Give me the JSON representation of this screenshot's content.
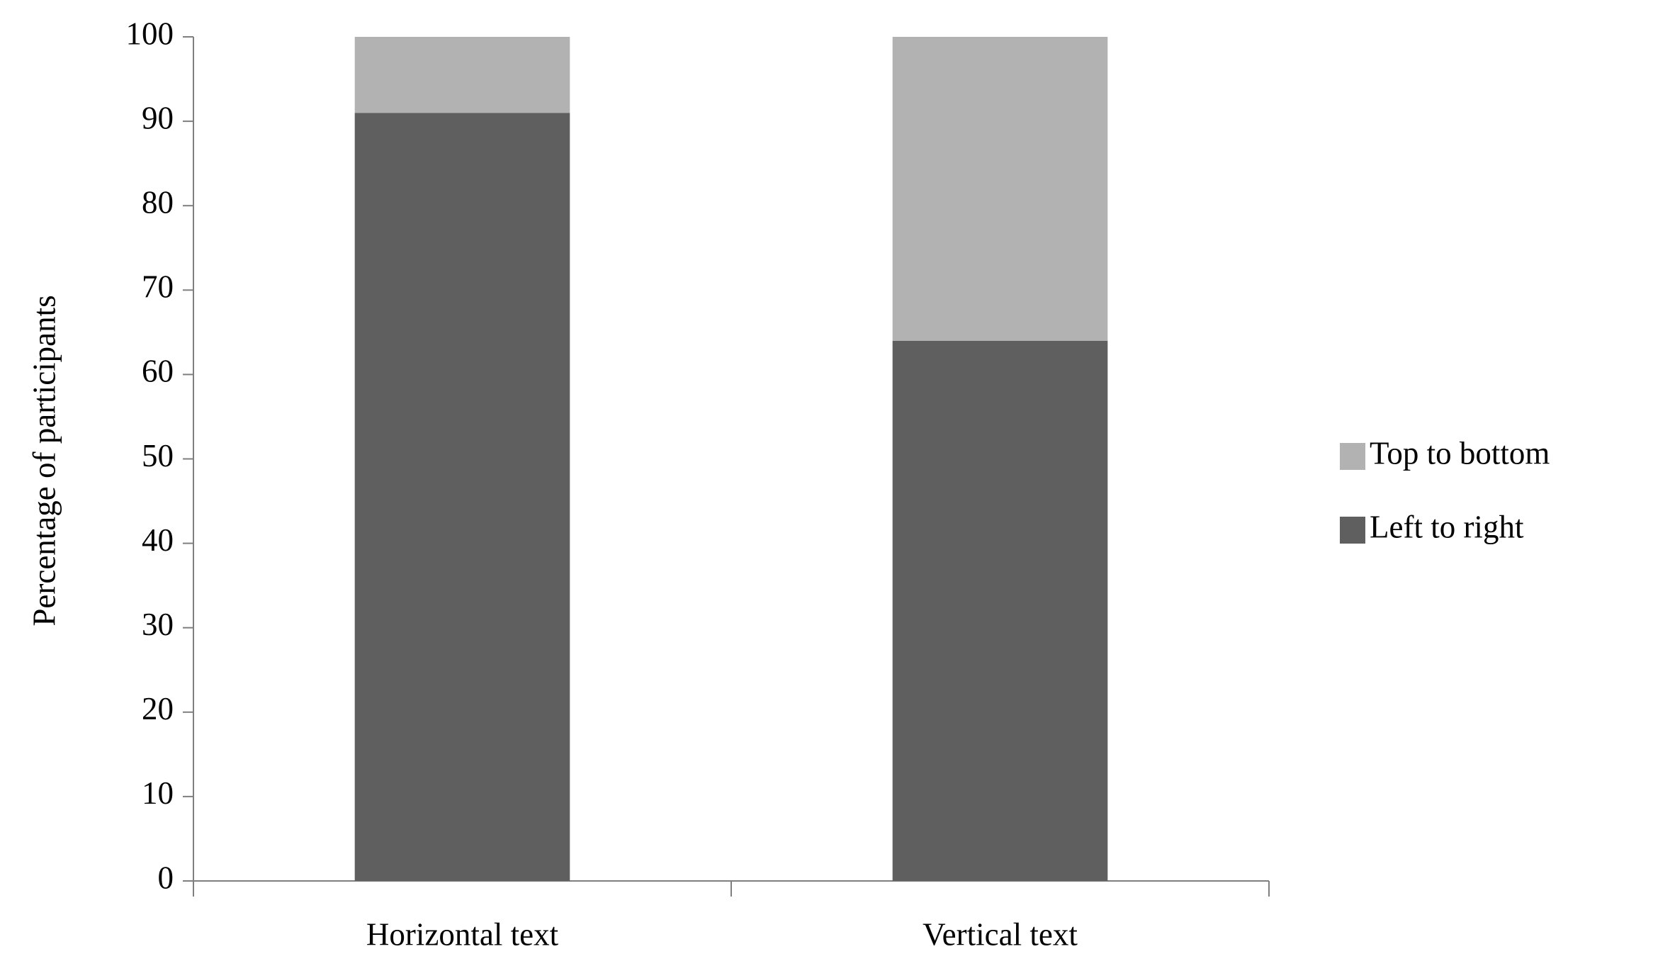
{
  "chart_data": {
    "type": "stacked-bar",
    "y_label": "Percentage of participants",
    "categories": [
      "Horizontal text",
      "Vertical text"
    ],
    "series": [
      {
        "name": "Left to right",
        "color": "#5f5f5f",
        "values": [
          91,
          64
        ]
      },
      {
        "name": "Top to bottom",
        "color": "#b2b2b2",
        "values": [
          9,
          36
        ]
      }
    ],
    "ylim": [
      0,
      100
    ],
    "yticks": [
      0,
      10,
      20,
      30,
      40,
      50,
      60,
      70,
      80,
      90,
      100
    ],
    "grid": false,
    "legend": "right"
  }
}
